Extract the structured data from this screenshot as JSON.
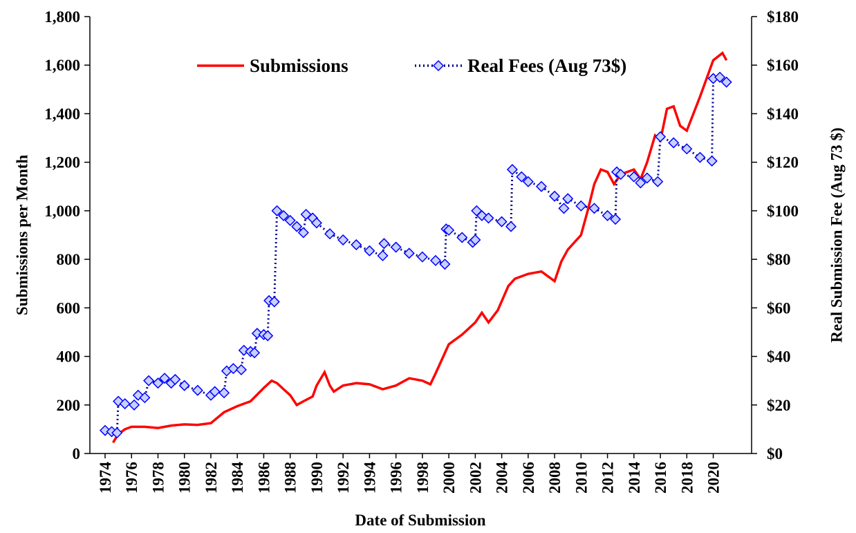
{
  "chart_data": {
    "type": "line",
    "xlabel": "Date of Submission",
    "ylabel": "Submissions per Month",
    "y2label": "Real Submission Fee (Aug 73 $)",
    "xlim": [
      1972.85,
      2022.9
    ],
    "xticks": [
      1974,
      1976,
      1978,
      1980,
      1982,
      1984,
      1986,
      1988,
      1990,
      1992,
      1994,
      1996,
      1998,
      2000,
      2002,
      2004,
      2006,
      2008,
      2010,
      2012,
      2014,
      2016,
      2018,
      2020
    ],
    "ylim": [
      0,
      1800
    ],
    "yticks": [
      0,
      200,
      400,
      600,
      800,
      {
        "value": 1000,
        "label": "1,000"
      },
      {
        "value": 1200,
        "label": "1,200"
      },
      {
        "value": 1400,
        "label": "1,400"
      },
      {
        "value": 1600,
        "label": "1,600"
      },
      {
        "value": 1800,
        "label": "1,800"
      }
    ],
    "y2lim": [
      0,
      180
    ],
    "y2ticks": [
      {
        "value": 0,
        "label": "$0"
      },
      {
        "value": 20,
        "label": "$20"
      },
      {
        "value": 40,
        "label": "$40"
      },
      {
        "value": 60,
        "label": "$60"
      },
      {
        "value": 80,
        "label": "$80"
      },
      {
        "value": 100,
        "label": "$100"
      },
      {
        "value": 120,
        "label": "$120"
      },
      {
        "value": 140,
        "label": "$140"
      },
      {
        "value": 160,
        "label": "$160"
      },
      {
        "value": 180,
        "label": "$180"
      }
    ],
    "legend": "top",
    "series": [
      {
        "name": "Submissions",
        "color": "#ff0000",
        "axis": "y",
        "style": "solid",
        "x": [
          1974.6,
          1975,
          1975.5,
          1976,
          1977,
          1978,
          1979,
          1980,
          1981,
          1982,
          1983,
          1984,
          1985,
          1986,
          1986.6,
          1987,
          1987.5,
          1988,
          1988.5,
          1989,
          1989.7,
          1990,
          1990.6,
          1991,
          1991.3,
          1992,
          1993,
          1994,
          1995,
          1996,
          1997,
          1998,
          1998.6,
          1999,
          2000,
          2001,
          2002,
          2002.5,
          2003,
          2003.7,
          2004.5,
          2005,
          2006,
          2007,
          2008,
          2008.5,
          2009,
          2010,
          2010.5,
          2011,
          2011.5,
          2012,
          2012.5,
          2013,
          2014,
          2014.5,
          2015,
          2015.6,
          2016,
          2016.5,
          2017,
          2017.5,
          2018,
          2019,
          2020,
          2020.7,
          2021
        ],
        "values": [
          45,
          80,
          100,
          110,
          110,
          105,
          115,
          120,
          118,
          125,
          170,
          195,
          215,
          270,
          300,
          290,
          265,
          240,
          200,
          215,
          235,
          280,
          335,
          280,
          255,
          280,
          290,
          285,
          265,
          280,
          310,
          300,
          285,
          330,
          450,
          490,
          540,
          580,
          540,
          590,
          690,
          720,
          740,
          750,
          710,
          790,
          840,
          900,
          1000,
          1110,
          1170,
          1160,
          1110,
          1150,
          1170,
          1130,
          1200,
          1310,
          1290,
          1420,
          1430,
          1350,
          1330,
          1470,
          1620,
          1650,
          1620
        ]
      },
      {
        "name": "Real Fees (Aug 73$)",
        "color": "#0000ff",
        "axis": "y2",
        "style": "dotted",
        "x": [
          1974,
          1974.5,
          1974.9,
          1975,
          1975.5,
          1976.2,
          1976.5,
          1977,
          1977.3,
          1978,
          1978.5,
          1979,
          1979.3,
          1980,
          1981,
          1982,
          1982.3,
          1983,
          1983.2,
          1983.7,
          1984.3,
          1984.5,
          1985,
          1985.3,
          1985.5,
          1986,
          1986.3,
          1986.4,
          1986.8,
          1987,
          1987.5,
          1988,
          1988.5,
          1989,
          1989.2,
          1989.7,
          1990,
          1991,
          1992,
          1993,
          1994,
          1995,
          1995.1,
          1996,
          1997,
          1998,
          1999,
          1999.7,
          1999.8,
          2000,
          2001,
          2001.8,
          2002,
          2002.1,
          2002.5,
          2003,
          2004,
          2004.7,
          2004.8,
          2005.5,
          2006,
          2007,
          2008,
          2008.7,
          2009,
          2010,
          2011,
          2012,
          2012.6,
          2012.7,
          2013,
          2014,
          2014.5,
          2015,
          2015.8,
          2016,
          2017,
          2018,
          2019,
          2019.9,
          2020,
          2020.5,
          2021
        ],
        "values": [
          9.5,
          9,
          8.5,
          21.5,
          20.5,
          20,
          24,
          23,
          30,
          29,
          31,
          29,
          30.5,
          28,
          26,
          24,
          25.5,
          25,
          34,
          35,
          34.5,
          42.5,
          42,
          41.5,
          49.5,
          49,
          48.5,
          63,
          62.5,
          100,
          98,
          96,
          93.5,
          91,
          98.5,
          97,
          95,
          90.5,
          88,
          86,
          83.5,
          81.5,
          86.5,
          85,
          82.5,
          81,
          79.5,
          78,
          92.5,
          92,
          89,
          87,
          88,
          100,
          98,
          97,
          95.5,
          93.5,
          117,
          114,
          112,
          110,
          106,
          101,
          105,
          102,
          101,
          98,
          96.5,
          116,
          115,
          114,
          111.5,
          113.5,
          112,
          130.5,
          128,
          125.5,
          122,
          120.5,
          154.5,
          155,
          153
        ]
      }
    ]
  }
}
